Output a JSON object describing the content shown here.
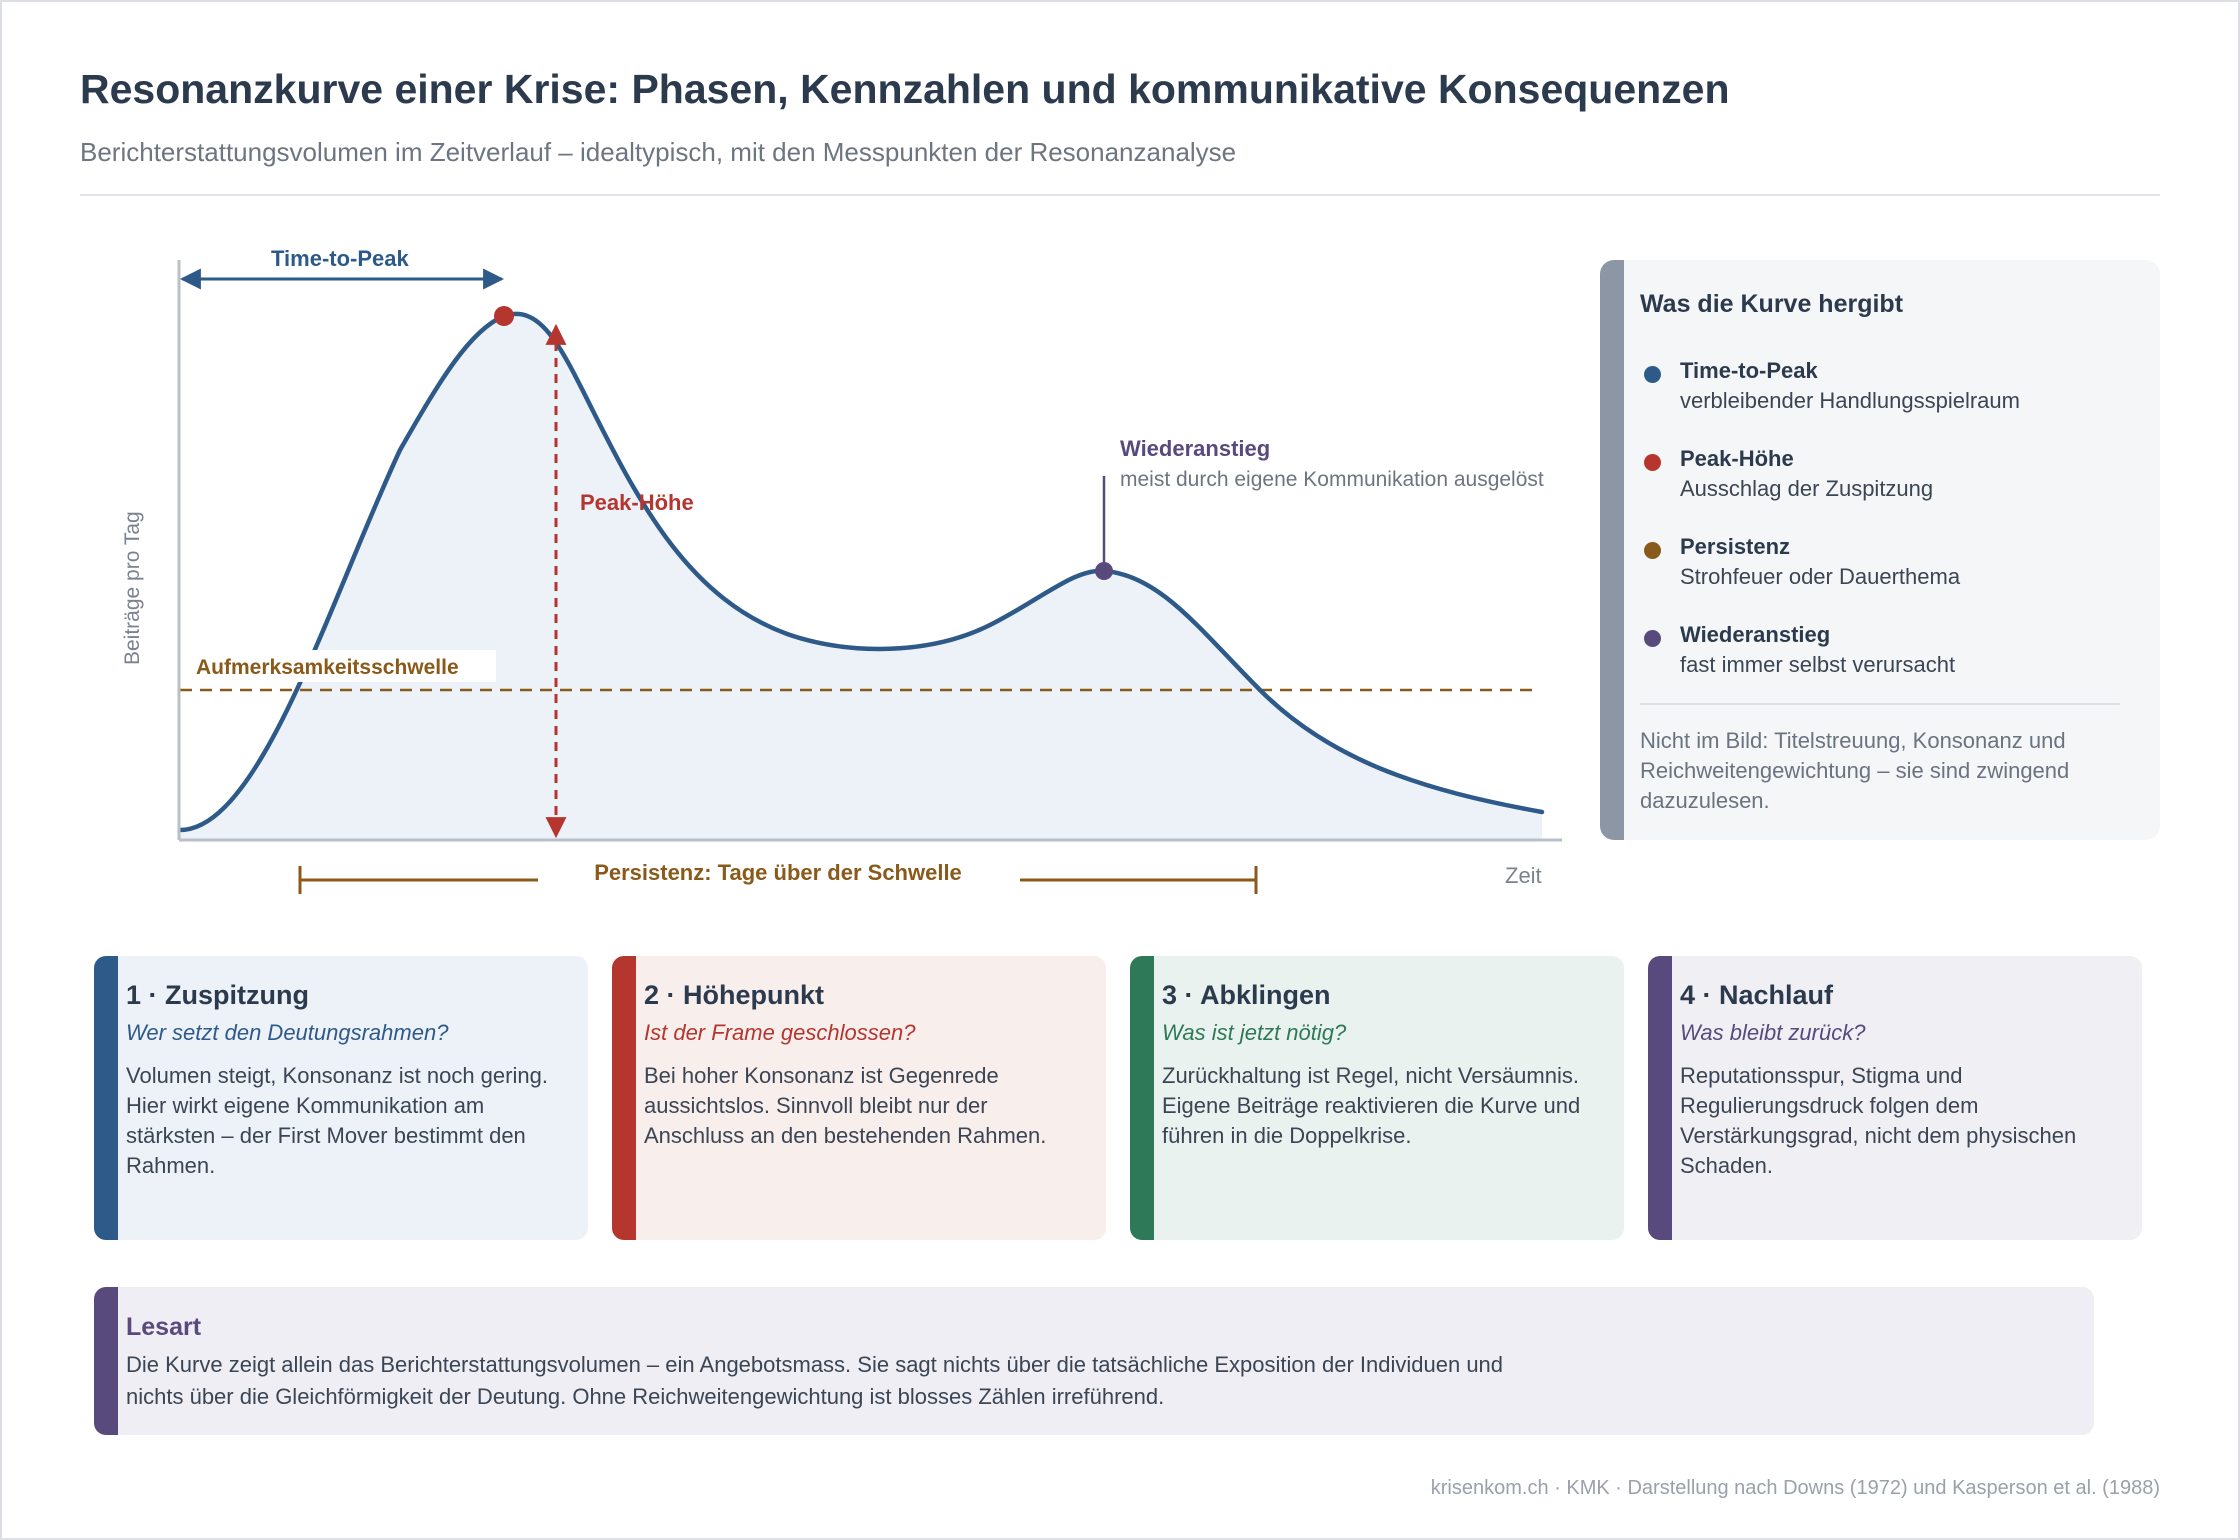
{
  "header": {
    "title": "Resonanzkurve einer Krise: Phasen, Kennzahlen und kommunikative Konsequenzen",
    "subtitle": "Berichterstattungsvolumen im Zeitverlauf – idealtypisch, mit den Messpunkten der Resonanzanalyse"
  },
  "diagram": {
    "y_axis_label": "Beiträge pro Tag",
    "x_axis_label": "Zeit",
    "time_to_peak_label": "Time-to-Peak",
    "peak_height_label": "Peak-Höhe",
    "threshold_label": "Aufmerksamkeitsschwelle",
    "persistence_label": "Persistenz: Tage über der Schwelle",
    "resurgence_label": "Wiederanstieg",
    "resurgence_note": "meist durch eigene Kommunikation ausgelöst",
    "colors": {
      "curve": "#2e5a8a",
      "fill": "#edf1f8",
      "peak": "#b5362f",
      "threshold": "#8a5a1a",
      "resurgence": "#594a7e",
      "axis": "#b9c0ca"
    }
  },
  "sidebar": {
    "title": "Was die Kurve hergibt",
    "items": [
      {
        "title": "Time-to-Peak",
        "desc": "verbleibender Handlungsspielraum",
        "color": "#2e5a8a"
      },
      {
        "title": "Peak-Höhe",
        "desc": "Ausschlag der Zuspitzung",
        "color": "#b5362f"
      },
      {
        "title": "Persistenz",
        "desc": "Strohfeuer oder Dauerthema",
        "color": "#8a5a1a"
      },
      {
        "title": "Wiederanstieg",
        "desc": "fast immer selbst verursacht",
        "color": "#594a7e"
      }
    ],
    "note": "Nicht im Bild: Titelstreuung, Konsonanz und Reichweitengewichtung – sie sind zwingend dazuzulesen."
  },
  "phases": [
    {
      "title": "1 · Zuspitzung",
      "question": "Wer setzt den Deutungsrahmen?",
      "body": "Volumen steigt, Konsonanz ist noch gering. Hier wirkt eigene Kommunikation am stärksten – der First Mover bestimmt den Rahmen.",
      "color": "#2e5a8a",
      "bg": "#edf1f8"
    },
    {
      "title": "2 · Höhepunkt",
      "question": "Ist der Frame geschlossen?",
      "body": "Bei hoher Konsonanz ist Gegenrede aussichtslos. Sinnvoll bleibt nur der Anschluss an den bestehenden Rahmen.",
      "color": "#b5362f",
      "bg": "#f8eeec"
    },
    {
      "title": "3 · Abklingen",
      "question": "Was ist jetzt nötig?",
      "body": "Zurückhaltung ist Regel, nicht Versäumnis. Eigene Beiträge reaktivieren die Kurve und führen in die Doppelkrise.",
      "color": "#2e7a58",
      "bg": "#e9f2ee"
    },
    {
      "title": "4 · Nachlauf",
      "question": "Was bleibt zurück?",
      "body": "Reputationsspur, Stigma und Regulierungsdruck folgen dem Verstärkungsgrad, nicht dem physischen Schaden.",
      "color": "#594a7e",
      "bg": "#efeff4"
    }
  ],
  "lesart": {
    "title": "Lesart",
    "body": "Die Kurve zeigt allein das Berichterstattungsvolumen – ein Angebotsmass. Sie sagt nichts über die tatsächliche Exposition der Individuen und nichts über die Gleichförmigkeit der Deutung. Ohne Reichweitengewichtung ist blosses Zählen irreführend."
  },
  "footer": "krisenkom.ch · KMK · Darstellung nach Downs (1972) und Kasperson et al. (1988)"
}
